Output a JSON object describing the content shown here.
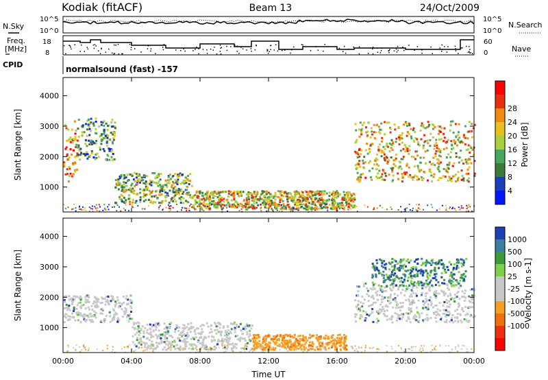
{
  "header": {
    "station": "Kodiak (fitACF)",
    "beam": "Beam 13",
    "date": "24/Oct/2009"
  },
  "status_panels": {
    "noise": {
      "left_label": "N.Sky",
      "right_label": "N.Search",
      "left_ticks": [
        "10^5",
        "10^0"
      ],
      "right_ticks": [
        "10^5",
        "10^0"
      ]
    },
    "freq": {
      "left_label_1": "Freq.",
      "left_label_2": "[MHz]",
      "right_label": "Nave",
      "left_ticks": [
        "18",
        "8"
      ],
      "right_ticks": [
        "60",
        "0"
      ]
    },
    "cpid": {
      "label": "CPID",
      "text": "normalsound (fast) -157"
    }
  },
  "chart_data": [
    {
      "type": "heatmap",
      "name": "Power",
      "ylabel": "Slant Range [km]",
      "y_ticks": [
        1000,
        2000,
        3000,
        4000
      ],
      "ylim": [
        180,
        4600
      ],
      "x_ticks": [
        "00:00",
        "04:00",
        "08:00",
        "12:00",
        "16:00",
        "20:00",
        "00:00"
      ],
      "xlim_hours": [
        0,
        24
      ],
      "colorbar": {
        "label": "Power [dB]",
        "ticks": [
          "4",
          "8",
          "12",
          "16",
          "20",
          "24",
          "28"
        ],
        "colors": [
          "#0018ff",
          "#1a3fb8",
          "#3c7a3c",
          "#49a65d",
          "#a8d13b",
          "#e8c020",
          "#f08a10",
          "#e83010",
          "#ff0000"
        ]
      },
      "regions": [
        {
          "t0": 0.0,
          "t1": 0.8,
          "r0": 1200,
          "r1": 3200,
          "level": 0.7
        },
        {
          "t0": 0.8,
          "t1": 3.0,
          "r0": 1900,
          "r1": 3300,
          "level": 0.35
        },
        {
          "t0": 3.0,
          "t1": 7.5,
          "r0": 500,
          "r1": 1500,
          "level": 0.45
        },
        {
          "t0": 7.5,
          "t1": 17.0,
          "r0": 300,
          "r1": 900,
          "level": 0.55
        },
        {
          "t0": 17.0,
          "t1": 24.0,
          "r0": 1200,
          "r1": 3200,
          "level": 0.6
        }
      ]
    },
    {
      "type": "heatmap",
      "name": "Velocity",
      "ylabel": "Slant Range [km]",
      "y_ticks": [
        1000,
        2000,
        3000,
        4000
      ],
      "ylim": [
        180,
        4600
      ],
      "x_ticks": [
        "00:00",
        "04:00",
        "08:00",
        "12:00",
        "16:00",
        "20:00",
        "00:00"
      ],
      "xlim_hours": [
        0,
        24
      ],
      "xlabel": "Time UT",
      "colorbar": {
        "label": "Velocity [m s-1]",
        "ticks": [
          "1000",
          "500",
          "100",
          "25",
          "-25",
          "-100",
          "-500",
          "-1000"
        ],
        "colors": [
          "#1f3fb4",
          "#3a7fa0",
          "#3d9a3a",
          "#7cd04a",
          "#c8c8c8",
          "#c8c8c8",
          "#f5a020",
          "#f07010",
          "#ee3010",
          "#ff0000"
        ]
      },
      "regions": [
        {
          "t0": 0.0,
          "t1": 4.0,
          "r0": 1200,
          "r1": 2100,
          "level": "ground"
        },
        {
          "t0": 4.0,
          "t1": 11.0,
          "r0": 300,
          "r1": 1200,
          "level": "ground"
        },
        {
          "t0": 11.0,
          "t1": 16.5,
          "r0": 300,
          "r1": 800,
          "level": "negative"
        },
        {
          "t0": 17.0,
          "t1": 24.0,
          "r0": 1200,
          "r1": 2500,
          "level": "ground"
        },
        {
          "t0": 18.0,
          "t1": 23.5,
          "r0": 2400,
          "r1": 3300,
          "level": "positive"
        }
      ]
    }
  ]
}
